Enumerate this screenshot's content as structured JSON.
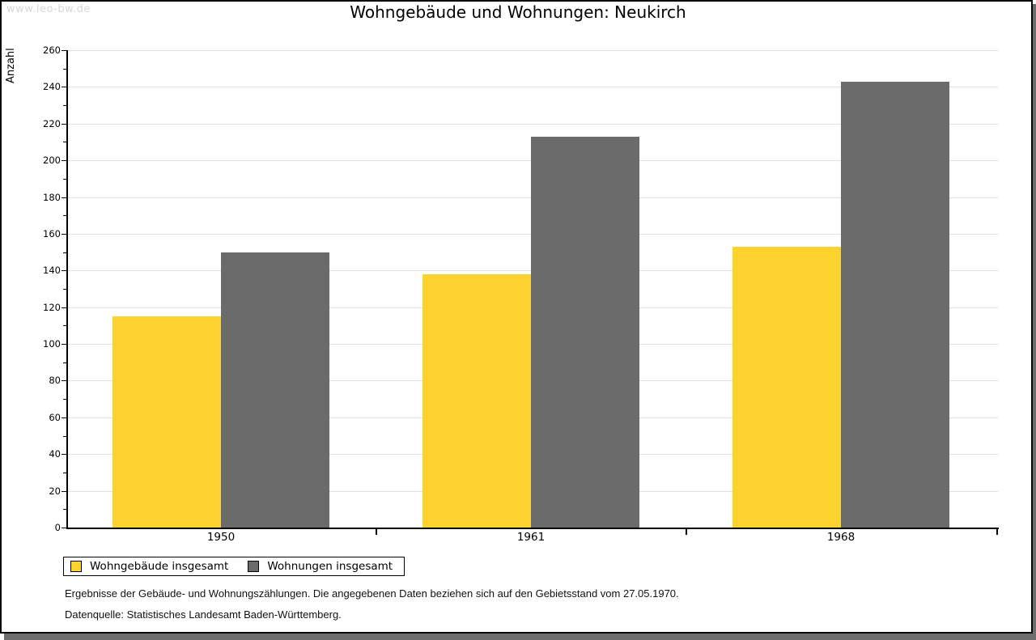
{
  "watermark": "www.leo-bw.de",
  "title": "Wohngebäude und Wohnungen: Neukirch",
  "chart_data": {
    "type": "bar",
    "title": "Wohngebäude und Wohnungen: Neukirch",
    "ylabel": "Anzahl",
    "xlabel": "",
    "categories": [
      "1950",
      "1961",
      "1968"
    ],
    "series": [
      {
        "name": "Wohngebäude insgesamt",
        "color": "#fcd22e",
        "values": [
          115,
          138,
          153
        ]
      },
      {
        "name": "Wohnungen insgesamt",
        "color": "#6b6b6b",
        "values": [
          150,
          213,
          243
        ]
      }
    ],
    "ylim": [
      0,
      260
    ],
    "y_major_step": 20,
    "y_minor_step": 10,
    "grid": true,
    "gridline_color": "#e0e0e0",
    "legend_position": "bottom-left"
  },
  "footer": {
    "line1": "Ergebnisse der Gebäude- und Wohnungszählungen. Die angegebenen Daten beziehen sich auf den Gebietsstand vom 27.05.1970.",
    "line2": "Datenquelle: Statistisches Landesamt Baden-Württemberg."
  }
}
